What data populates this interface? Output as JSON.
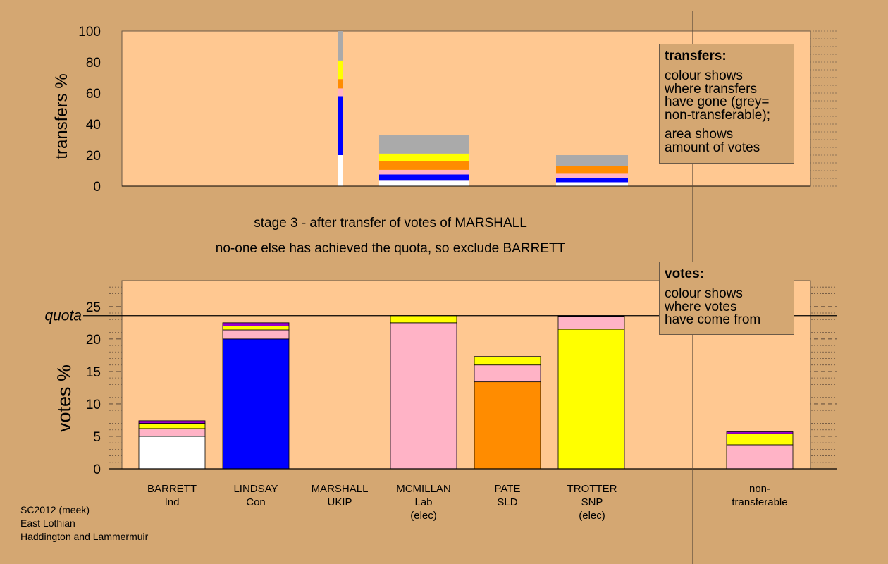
{
  "top_panel": {
    "ylabel": "transfers %",
    "yticks": [
      "0",
      "20",
      "40",
      "60",
      "80",
      "100"
    ],
    "legend": {
      "title": "transfers:",
      "lines1": [
        "colour shows",
        "where transfers",
        "have gone (grey=",
        "non-transferable);"
      ],
      "lines2": [
        "area shows",
        "amount of votes"
      ]
    }
  },
  "stage_text": {
    "line1": "stage 3 - after transfer of votes of MARSHALL",
    "line2": "no-one else has achieved the quota, so exclude BARRETT"
  },
  "bottom_panel": {
    "ylabel": "votes %",
    "quota_label": "quota",
    "yticks": [
      "0",
      "5",
      "10",
      "15",
      "20",
      "25"
    ],
    "legend": {
      "title": "votes:",
      "lines": [
        "colour shows",
        "where votes",
        "have come from"
      ]
    }
  },
  "candidates": [
    {
      "name": "BARRETT",
      "party": "Ind",
      "status": ""
    },
    {
      "name": "LINDSAY",
      "party": "Con",
      "status": ""
    },
    {
      "name": "MARSHALL",
      "party": "UKIP",
      "status": ""
    },
    {
      "name": "MCMILLAN",
      "party": "Lab",
      "status": "(elec)"
    },
    {
      "name": "PATE",
      "party": "SLD",
      "status": ""
    },
    {
      "name": "TROTTER",
      "party": "SNP",
      "status": "(elec)"
    }
  ],
  "nontransferable_label": {
    "line1": "non-",
    "line2": "transferable"
  },
  "source": {
    "line1": "SC2012 (meek)",
    "line2": "East Lothian",
    "line3": "Haddington and Lammermuir"
  },
  "colors": {
    "background": "#d4a772",
    "plot": "#ffc891",
    "Ind": "#ffffff",
    "Con": "#0000ff",
    "Lab": "#ffb3c6",
    "SLD": "#ff8c00",
    "SNP": "#ffff00",
    "UKIP": "#9900cc",
    "nontransferable": "#aaaaaa"
  },
  "chart_data": [
    {
      "type": "bar",
      "title": "transfers",
      "ylabel": "transfers %",
      "ylim": [
        0,
        100
      ],
      "bars": [
        {
          "position": "MARSHALL",
          "width_share": 0.04,
          "segments": [
            {
              "color": "Ind",
              "value": 20
            },
            {
              "color": "Con",
              "value": 38
            },
            {
              "color": "Lab",
              "value": 5
            },
            {
              "color": "SLD",
              "value": 6
            },
            {
              "color": "SNP",
              "value": 12
            },
            {
              "color": "nontransferable",
              "value": 19
            }
          ]
        },
        {
          "position": "MCMILLAN-PATE gap",
          "width_share": 0.5,
          "segments": [
            {
              "color": "Ind",
              "value": 3.5
            },
            {
              "color": "Con",
              "value": 4
            },
            {
              "color": "Lab",
              "value": 3
            },
            {
              "color": "SLD",
              "value": 5.5
            },
            {
              "color": "SNP",
              "value": 5
            },
            {
              "color": "nontransferable",
              "value": 12
            }
          ]
        },
        {
          "position": "TROTTER",
          "width_share": 0.4,
          "segments": [
            {
              "color": "Ind",
              "value": 2.5
            },
            {
              "color": "Con",
              "value": 2.5
            },
            {
              "color": "Lab",
              "value": 3
            },
            {
              "color": "SLD",
              "value": 5
            },
            {
              "color": "nontransferable",
              "value": 7
            }
          ]
        }
      ]
    },
    {
      "type": "bar",
      "title": "votes",
      "ylabel": "votes %",
      "ylim": [
        0,
        29
      ],
      "quota": 23.6,
      "categories": [
        "BARRETT",
        "LINDSAY",
        "MARSHALL",
        "MCMILLAN",
        "PATE",
        "TROTTER",
        "non-transferable"
      ],
      "stacks": [
        [
          {
            "color": "Ind",
            "value": 5.0
          },
          {
            "color": "Lab",
            "value": 1.2
          },
          {
            "color": "SNP",
            "value": 0.8
          },
          {
            "color": "UKIP",
            "value": 0.4
          }
        ],
        [
          {
            "color": "Con",
            "value": 20.0
          },
          {
            "color": "Lab",
            "value": 1.4
          },
          {
            "color": "SNP",
            "value": 0.6
          },
          {
            "color": "UKIP",
            "value": 0.5
          }
        ],
        [],
        [
          {
            "color": "Lab",
            "value": 22.5
          },
          {
            "color": "SNP",
            "value": 1.1
          }
        ],
        [
          {
            "color": "SLD",
            "value": 13.4
          },
          {
            "color": "Lab",
            "value": 2.6
          },
          {
            "color": "SNP",
            "value": 1.3
          }
        ],
        [
          {
            "color": "SNP",
            "value": 21.5
          },
          {
            "color": "Lab",
            "value": 2.0
          },
          {
            "color": "UKIP",
            "value": 0.1
          }
        ],
        [
          {
            "color": "Lab",
            "value": 3.7
          },
          {
            "color": "SNP",
            "value": 1.7
          },
          {
            "color": "UKIP",
            "value": 0.3
          }
        ]
      ]
    }
  ]
}
